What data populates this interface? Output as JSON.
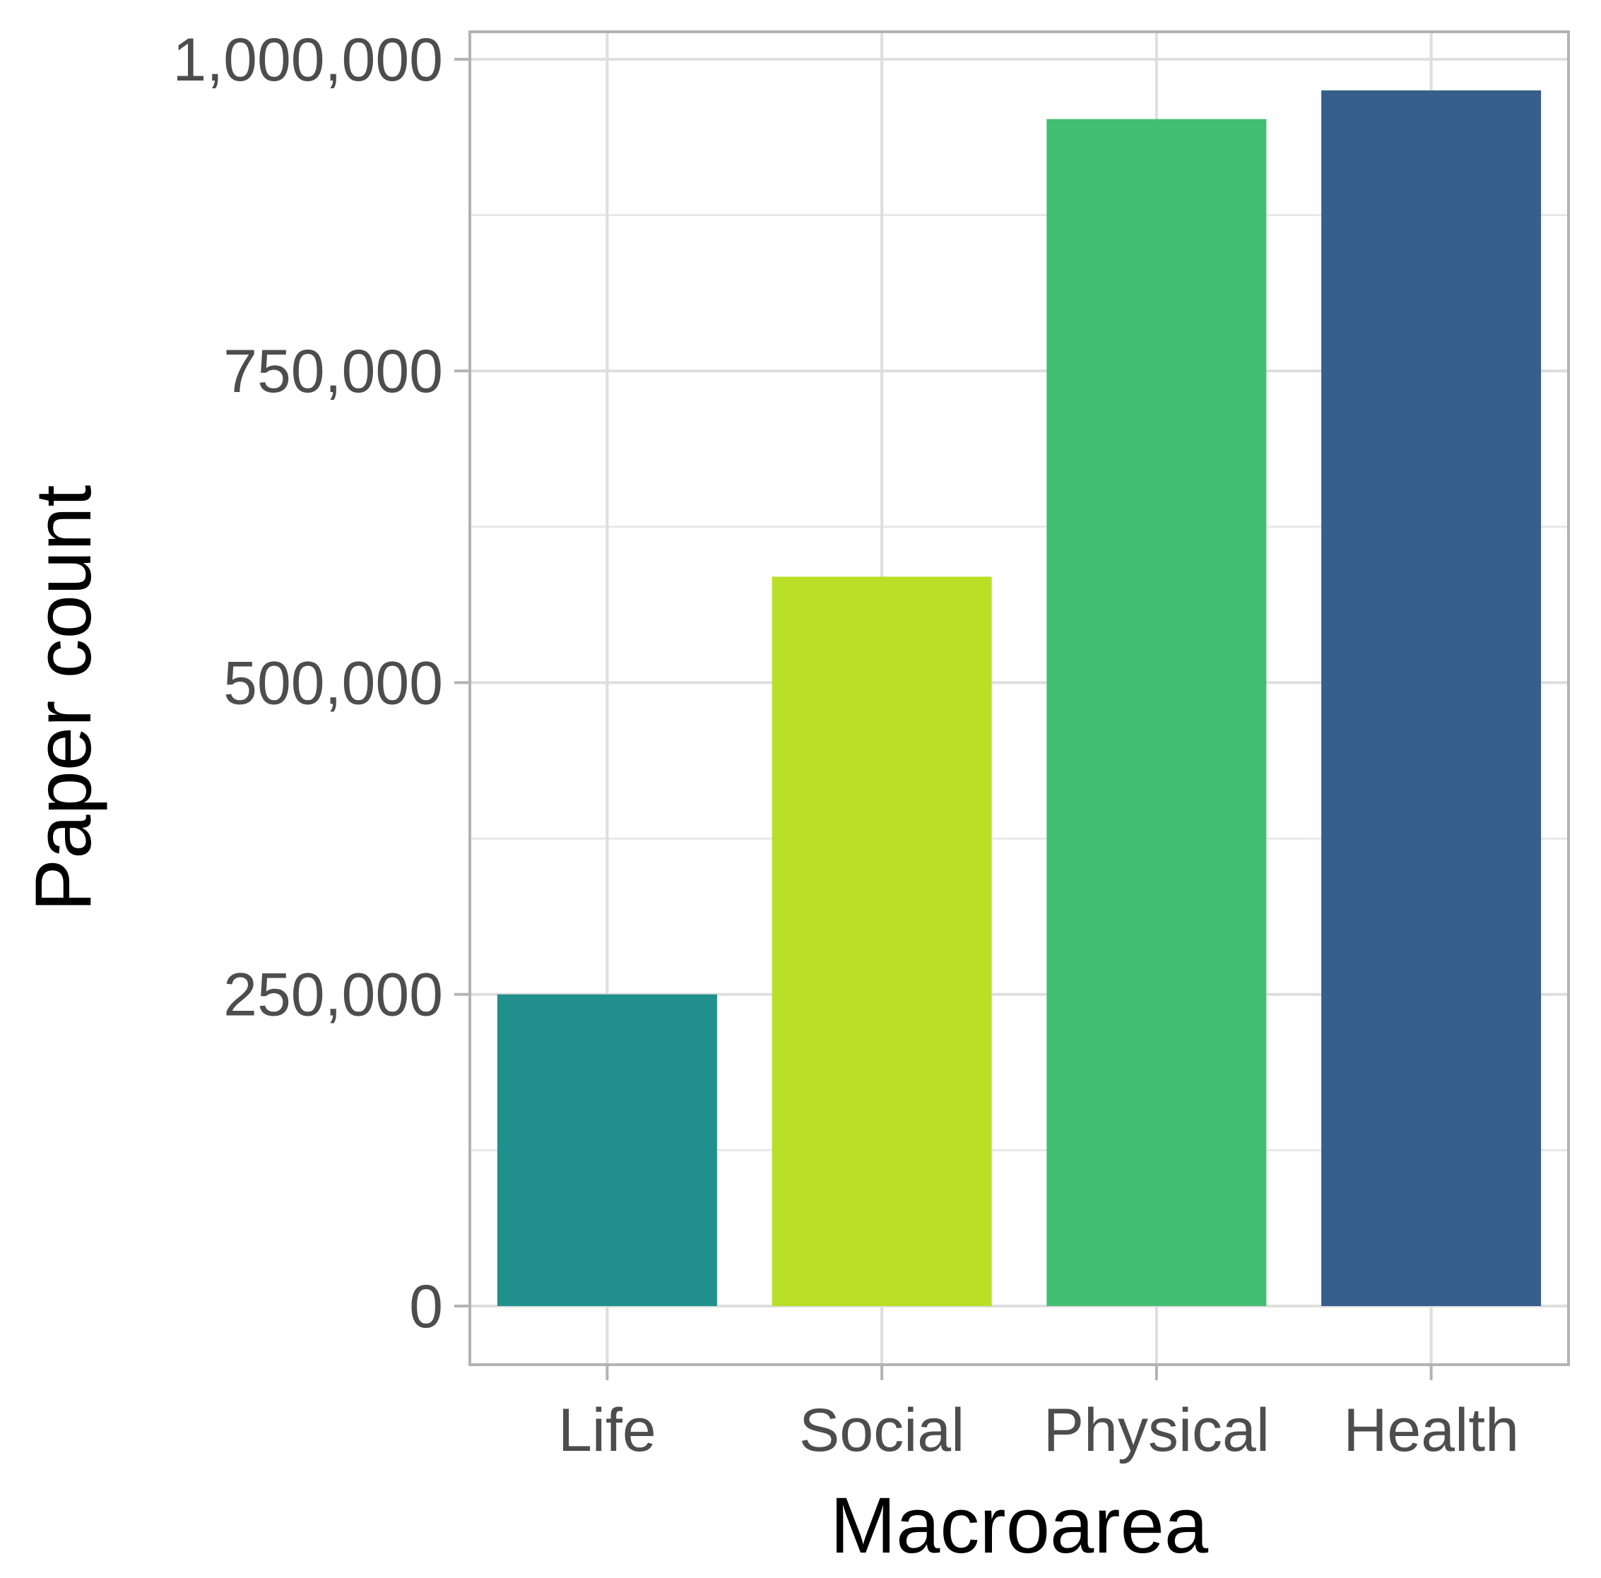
{
  "chart_data": {
    "type": "bar",
    "categories": [
      "Life",
      "Social",
      "Physical",
      "Health"
    ],
    "values": [
      250000,
      585000,
      952000,
      975000
    ],
    "colors": [
      "#21908C",
      "#BADF27",
      "#43BF71",
      "#365F8B"
    ],
    "xlabel": "Macroarea",
    "ylabel": "Paper count",
    "ylim": [
      -47000,
      1022000
    ],
    "yticks": [
      0,
      250000,
      500000,
      750000,
      1000000
    ],
    "ytick_labels": [
      "0",
      "250,000",
      "500,000",
      "750,000",
      "1,000,000"
    ],
    "grid": true,
    "legend": "none"
  }
}
